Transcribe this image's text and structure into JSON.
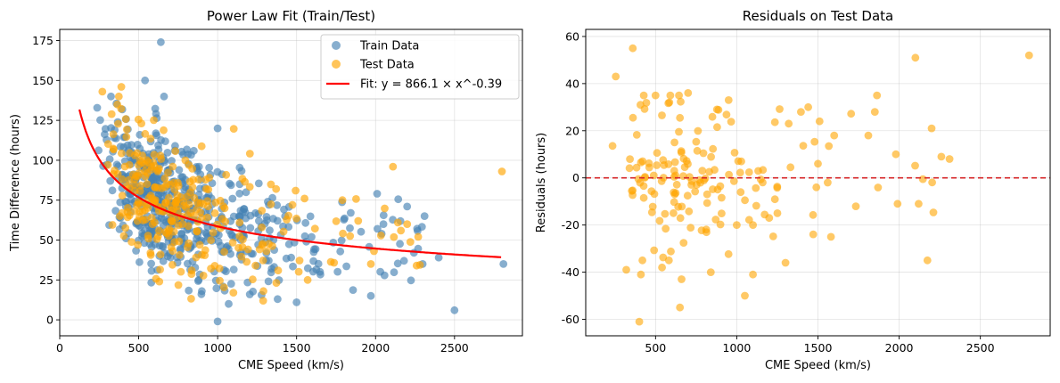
{
  "colors": {
    "train": "#4682B4",
    "test": "#FFA500",
    "fit": "#FF0000",
    "zero": "#D62728"
  },
  "chart_data": [
    {
      "type": "scatter",
      "title": "Power Law Fit (Train/Test)",
      "xlabel": "CME Speed (km/s)",
      "ylabel": "Time Difference (hours)",
      "xlim": [
        0,
        2930
      ],
      "ylim": [
        -10,
        182
      ],
      "xticks": [
        0,
        500,
        1000,
        1500,
        2000,
        2500
      ],
      "yticks": [
        0,
        25,
        50,
        75,
        100,
        125,
        150,
        175
      ],
      "grid": true,
      "legend_position": "top-right",
      "legend": [
        "Train Data",
        "Test Data",
        "Fit: y = 866.1 × x^-0.39"
      ],
      "fit": {
        "a": 866.1,
        "b": -0.39,
        "x_start": 125,
        "x_end": 2800
      },
      "series": [
        {
          "name": "Train Data",
          "seed": 7,
          "n": 560,
          "extra": [
            [
              640,
              174
            ],
            [
              540,
              150
            ],
            [
              1000,
              -1
            ],
            [
              2500,
              6
            ],
            [
              2810,
              35
            ],
            [
              1970,
              15
            ],
            [
              2180,
              37
            ],
            [
              2310,
              65
            ],
            [
              2200,
              71
            ],
            [
              2400,
              39
            ],
            [
              2010,
              79
            ],
            [
              2050,
              60
            ],
            [
              1000,
              120
            ],
            [
              1140,
              60
            ],
            [
              1140,
              85
            ],
            [
              1180,
              80
            ],
            [
              1500,
              11
            ],
            [
              1380,
              13
            ],
            [
              1070,
              10
            ],
            [
              900,
              18
            ],
            [
              880,
              25
            ]
          ]
        },
        {
          "name": "Test Data",
          "seed": 13,
          "n": 280,
          "extra": [
            [
              2800,
              93
            ],
            [
              2110,
              96
            ],
            [
              390,
              146
            ],
            [
              270,
              143
            ],
            [
              1370,
              82
            ],
            [
              1550,
              76
            ],
            [
              1790,
              75
            ],
            [
              1890,
              62
            ],
            [
              1990,
              43
            ],
            [
              2270,
              52
            ],
            [
              2260,
              34
            ],
            [
              1570,
              25
            ],
            [
              1240,
              34
            ],
            [
              1290,
              18
            ],
            [
              1100,
              17
            ],
            [
              2200,
              60
            ],
            [
              1970,
              35
            ]
          ]
        }
      ]
    },
    {
      "type": "scatter",
      "title": "Residuals on Test Data",
      "xlabel": "CME Speed (km/s)",
      "ylabel": "Residuals (hours)",
      "xlim": [
        70,
        2930
      ],
      "ylim": [
        -67,
        63
      ],
      "xticks": [
        500,
        1000,
        1500,
        2000,
        2500
      ],
      "yticks": [
        -60,
        -40,
        -20,
        0,
        20,
        40,
        60
      ],
      "grid": true,
      "reference_line": 0,
      "series": [
        {
          "name": "Test Data",
          "seed": 29,
          "n": 150,
          "extra": [
            [
              2800,
              52
            ],
            [
              2100,
              51
            ],
            [
              360,
              55
            ],
            [
              255,
              43
            ],
            [
              1850,
              28
            ],
            [
              1440,
              30
            ],
            [
              1395,
              28
            ],
            [
              2200,
              21
            ],
            [
              1600,
              18
            ],
            [
              1980,
              10
            ],
            [
              1810,
              18
            ],
            [
              1320,
              23
            ],
            [
              1510,
              24
            ],
            [
              950,
              33
            ],
            [
              700,
              36
            ],
            [
              585,
              32
            ],
            [
              500,
              35
            ],
            [
              1580,
              -25
            ],
            [
              1300,
              -36
            ],
            [
              1100,
              -41
            ],
            [
              1050,
              -50
            ],
            [
              840,
              -40
            ],
            [
              660,
              -43
            ],
            [
              650,
              -55
            ],
            [
              400,
              -61
            ],
            [
              410,
              -41
            ],
            [
              540,
              -38
            ],
            [
              320,
              -39
            ],
            [
              1990,
              -11
            ],
            [
              2120,
              -11
            ],
            [
              2310,
              8
            ],
            [
              2260,
              9
            ],
            [
              1000,
              -20
            ],
            [
              1100,
              -20
            ],
            [
              1200,
              -17
            ],
            [
              1250,
              -15
            ],
            [
              1560,
              -2
            ],
            [
              1490,
              -4
            ],
            [
              1500,
              6
            ]
          ]
        }
      ]
    }
  ]
}
